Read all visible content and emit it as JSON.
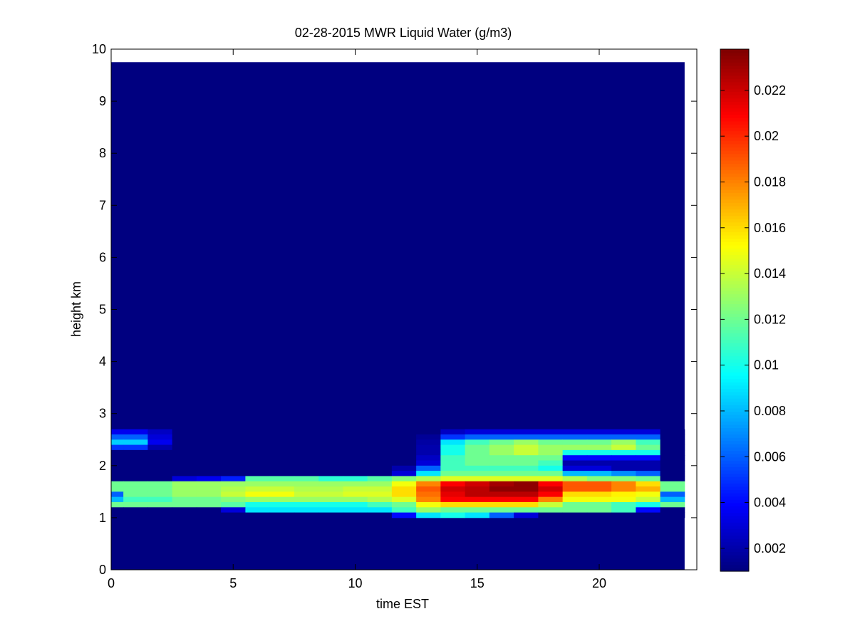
{
  "chart_data": {
    "type": "heatmap",
    "title": "02-28-2015 MWR Liquid Water (g/m3)",
    "xlabel": "time EST",
    "ylabel": "height km",
    "xlim": [
      0,
      24
    ],
    "ylim": [
      0,
      10
    ],
    "x_ticks": [
      "0",
      "5",
      "10",
      "15",
      "20"
    ],
    "x_tick_values": [
      0,
      5,
      10,
      15,
      20
    ],
    "y_ticks": [
      "0",
      "1",
      "2",
      "3",
      "4",
      "5",
      "6",
      "7",
      "8",
      "9",
      "10"
    ],
    "y_tick_values": [
      0,
      1,
      2,
      3,
      4,
      5,
      6,
      7,
      8,
      9,
      10
    ],
    "colorbar": {
      "min": 0.001,
      "max": 0.0238,
      "tick_values": [
        0.002,
        0.004,
        0.006,
        0.008,
        0.01,
        0.012,
        0.014,
        0.016,
        0.018,
        0.02,
        0.022
      ],
      "tick_labels": [
        "0.002",
        "0.004",
        "0.006",
        "0.008",
        "0.01",
        "0.012",
        "0.014",
        "0.016",
        "0.018",
        "0.02",
        "0.022"
      ],
      "colormap": "jet"
    },
    "grid": false,
    "background_value": 0.001,
    "data_extent": {
      "time_start": 0,
      "time_end": 23.5,
      "height_bottom": 0,
      "height_top": 9.75
    },
    "time_bins": [
      0,
      1,
      2,
      3,
      4,
      5,
      6,
      7,
      8,
      9,
      10,
      11,
      12,
      13,
      14,
      15,
      16,
      17,
      18,
      19,
      20,
      21,
      22,
      23
    ],
    "height_layers": [
      {
        "name": "2.6-2.7 km",
        "y0": 2.6,
        "y1": 2.7,
        "values": [
          0.0035,
          0.0035,
          0.0025,
          0.001,
          0.001,
          0.001,
          0.001,
          0.001,
          0.001,
          0.001,
          0.001,
          0.001,
          0.001,
          0.001,
          0.0025,
          0.003,
          0.003,
          0.003,
          0.003,
          0.003,
          0.003,
          0.003,
          0.003,
          0.001
        ]
      },
      {
        "name": "2.5-2.6 km",
        "y0": 2.5,
        "y1": 2.6,
        "values": [
          0.006,
          0.006,
          0.003,
          0.001,
          0.001,
          0.001,
          0.001,
          0.001,
          0.001,
          0.001,
          0.001,
          0.001,
          0.001,
          0.0015,
          0.005,
          0.006,
          0.006,
          0.006,
          0.006,
          0.006,
          0.006,
          0.006,
          0.006,
          0.001
        ]
      },
      {
        "name": "2.4-2.5 km",
        "y0": 2.4,
        "y1": 2.5,
        "values": [
          0.0085,
          0.0085,
          0.0035,
          0.001,
          0.001,
          0.001,
          0.001,
          0.001,
          0.001,
          0.001,
          0.001,
          0.001,
          0.001,
          0.0018,
          0.009,
          0.011,
          0.012,
          0.013,
          0.012,
          0.012,
          0.012,
          0.013,
          0.011,
          0.001
        ]
      },
      {
        "name": "2.3-2.4 km",
        "y0": 2.3,
        "y1": 2.4,
        "values": [
          0.005,
          0.005,
          0.002,
          0.001,
          0.001,
          0.001,
          0.001,
          0.001,
          0.001,
          0.001,
          0.001,
          0.001,
          0.001,
          0.002,
          0.01,
          0.012,
          0.013,
          0.014,
          0.013,
          0.013,
          0.013,
          0.014,
          0.012,
          0.001
        ]
      },
      {
        "name": "2.2-2.3 km",
        "y0": 2.2,
        "y1": 2.3,
        "values": [
          0.001,
          0.001,
          0.001,
          0.001,
          0.001,
          0.001,
          0.001,
          0.001,
          0.001,
          0.001,
          0.001,
          0.001,
          0.001,
          0.002,
          0.01,
          0.012,
          0.013,
          0.014,
          0.013,
          0.01,
          0.01,
          0.01,
          0.01,
          0.001
        ]
      },
      {
        "name": "2.1-2.2 km",
        "y0": 2.1,
        "y1": 2.2,
        "values": [
          0.001,
          0.001,
          0.001,
          0.001,
          0.001,
          0.001,
          0.001,
          0.001,
          0.001,
          0.001,
          0.001,
          0.001,
          0.001,
          0.0025,
          0.011,
          0.012,
          0.012,
          0.012,
          0.012,
          0.004,
          0.004,
          0.004,
          0.004,
          0.001
        ]
      },
      {
        "name": "2.0-2.1 km",
        "y0": 2.0,
        "y1": 2.1,
        "values": [
          0.001,
          0.001,
          0.001,
          0.001,
          0.001,
          0.001,
          0.001,
          0.001,
          0.001,
          0.001,
          0.001,
          0.001,
          0.001,
          0.003,
          0.011,
          0.012,
          0.012,
          0.012,
          0.011,
          0.002,
          0.002,
          0.002,
          0.002,
          0.001
        ]
      },
      {
        "name": "1.9-2.0 km",
        "y0": 1.9,
        "y1": 2.0,
        "values": [
          0.001,
          0.001,
          0.001,
          0.001,
          0.001,
          0.001,
          0.001,
          0.001,
          0.001,
          0.001,
          0.001,
          0.001,
          0.002,
          0.006,
          0.011,
          0.011,
          0.011,
          0.011,
          0.01,
          0.003,
          0.003,
          0.002,
          0.002,
          0.001
        ]
      },
      {
        "name": "1.8-1.9 km",
        "y0": 1.8,
        "y1": 1.9,
        "values": [
          0.001,
          0.001,
          0.001,
          0.001,
          0.001,
          0.001,
          0.001,
          0.001,
          0.001,
          0.001,
          0.001,
          0.001,
          0.003,
          0.009,
          0.012,
          0.012,
          0.012,
          0.012,
          0.012,
          0.008,
          0.008,
          0.007,
          0.006,
          0.001
        ]
      },
      {
        "name": "1.7-1.8 km",
        "y0": 1.7,
        "y1": 1.8,
        "values": [
          0.001,
          0.001,
          0.001,
          0.003,
          0.0035,
          0.0045,
          0.0115,
          0.0115,
          0.0115,
          0.0105,
          0.0105,
          0.0115,
          0.0125,
          0.0135,
          0.0145,
          0.0145,
          0.0145,
          0.0145,
          0.0145,
          0.0135,
          0.0125,
          0.0125,
          0.012,
          0.001
        ]
      },
      {
        "name": "1.6-1.7 km",
        "y0": 1.6,
        "y1": 1.7,
        "values": [
          0.012,
          0.012,
          0.012,
          0.013,
          0.013,
          0.013,
          0.013,
          0.013,
          0.013,
          0.013,
          0.013,
          0.013,
          0.015,
          0.018,
          0.021,
          0.022,
          0.023,
          0.0235,
          0.021,
          0.019,
          0.019,
          0.018,
          0.016,
          0.012
        ]
      },
      {
        "name": "1.5-1.6 km",
        "y0": 1.5,
        "y1": 1.6,
        "values": [
          0.012,
          0.012,
          0.012,
          0.013,
          0.013,
          0.0135,
          0.014,
          0.014,
          0.0135,
          0.0135,
          0.014,
          0.014,
          0.016,
          0.019,
          0.022,
          0.0225,
          0.0235,
          0.0235,
          0.022,
          0.019,
          0.019,
          0.018,
          0.017,
          0.012
        ]
      },
      {
        "name": "1.4-1.5 km",
        "y0": 1.4,
        "y1": 1.5,
        "values": [
          0.006,
          0.012,
          0.012,
          0.013,
          0.013,
          0.014,
          0.015,
          0.015,
          0.014,
          0.014,
          0.0145,
          0.0145,
          0.016,
          0.0185,
          0.0215,
          0.0225,
          0.0225,
          0.0225,
          0.021,
          0.016,
          0.016,
          0.0155,
          0.015,
          0.006
        ]
      },
      {
        "name": "1.3-1.4 km",
        "y0": 1.3,
        "y1": 1.4,
        "values": [
          0.008,
          0.011,
          0.011,
          0.012,
          0.012,
          0.0125,
          0.013,
          0.013,
          0.013,
          0.013,
          0.013,
          0.0135,
          0.0145,
          0.018,
          0.021,
          0.021,
          0.021,
          0.021,
          0.018,
          0.015,
          0.015,
          0.015,
          0.014,
          0.008
        ]
      },
      {
        "name": "1.2-1.3 km",
        "y0": 1.2,
        "y1": 1.3,
        "values": [
          0.012,
          0.012,
          0.012,
          0.012,
          0.012,
          0.0115,
          0.01,
          0.01,
          0.01,
          0.01,
          0.01,
          0.011,
          0.012,
          0.015,
          0.016,
          0.016,
          0.016,
          0.016,
          0.014,
          0.012,
          0.012,
          0.011,
          0.01,
          0.012
        ]
      },
      {
        "name": "1.1-1.2 km",
        "y0": 1.1,
        "y1": 1.2,
        "values": [
          0.001,
          0.001,
          0.001,
          0.001,
          0.001,
          0.003,
          0.009,
          0.009,
          0.009,
          0.009,
          0.009,
          0.009,
          0.011,
          0.013,
          0.012,
          0.012,
          0.012,
          0.012,
          0.012,
          0.012,
          0.012,
          0.011,
          0.004,
          0.001
        ]
      },
      {
        "name": "1.0-1.1 km",
        "y0": 1.0,
        "y1": 1.1,
        "values": [
          0.001,
          0.001,
          0.001,
          0.001,
          0.001,
          0.001,
          0.001,
          0.001,
          0.001,
          0.001,
          0.001,
          0.001,
          0.004,
          0.009,
          0.01,
          0.009,
          0.006,
          0.003,
          0.001,
          0.001,
          0.001,
          0.001,
          0.001,
          0.001
        ]
      }
    ]
  }
}
